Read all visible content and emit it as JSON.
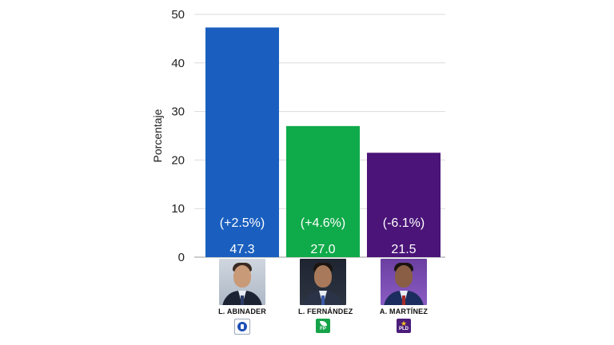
{
  "chart_data": {
    "type": "bar",
    "title": "",
    "xlabel": "",
    "ylabel": "Porcentaje",
    "ylim": [
      0,
      50
    ],
    "yticks": [
      0,
      10,
      20,
      30,
      40,
      50
    ],
    "grid": true,
    "categories": [
      "L. ABINADER",
      "L. FERNÁNDEZ",
      "A. MARTÍNEZ"
    ],
    "values": [
      47.3,
      27.0,
      21.5
    ],
    "value_labels": [
      "47.3",
      "27.0",
      "21.5"
    ],
    "change_labels": [
      "(+2.5%)",
      "(+4.6%)",
      "(-6.1%)"
    ],
    "colors": [
      "#1a5fbf",
      "#0faa4a",
      "#4a1478"
    ]
  },
  "candidates": [
    {
      "name": "L. ABINADER",
      "photo": "candidate-photo",
      "party_icon": "prm-logo-icon",
      "party_text": ""
    },
    {
      "name": "L. FERNÁNDEZ",
      "photo": "candidate-photo",
      "party_icon": "fp-logo-icon",
      "party_text": "FP"
    },
    {
      "name": "A. MARTÍNEZ",
      "photo": "candidate-photo",
      "party_icon": "pld-logo-icon",
      "party_text": "PLD"
    }
  ]
}
